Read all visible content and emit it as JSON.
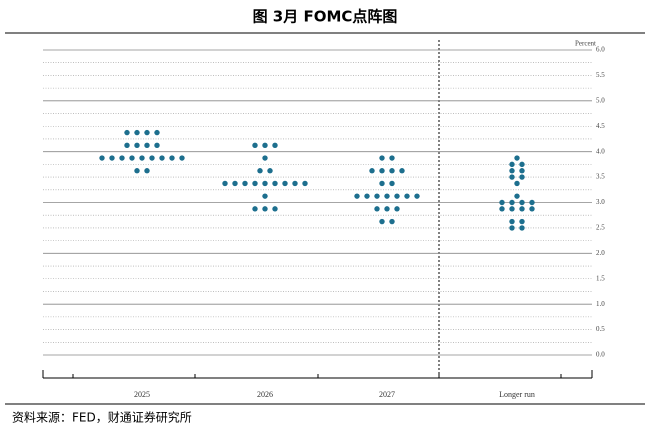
{
  "chart_data": {
    "type": "dot",
    "title": "图 3月 FOMC点阵图",
    "y_axis_label": "Percent",
    "source": "资料来源：FED，财通证券研究所",
    "categories": [
      "2025",
      "2026",
      "2027",
      "Longer run"
    ],
    "values": [
      [
        4.375,
        4.375,
        4.375,
        4.375,
        4.125,
        4.125,
        4.125,
        4.125,
        3.875,
        3.875,
        3.875,
        3.875,
        3.875,
        3.875,
        3.875,
        3.875,
        3.875,
        3.625,
        3.625
      ],
      [
        4.125,
        4.125,
        4.125,
        3.875,
        3.625,
        3.625,
        3.375,
        3.375,
        3.375,
        3.375,
        3.375,
        3.375,
        3.375,
        3.375,
        3.375,
        3.125,
        2.875,
        2.875,
        2.875
      ],
      [
        3.875,
        3.875,
        3.625,
        3.625,
        3.625,
        3.625,
        3.375,
        3.375,
        3.125,
        3.125,
        3.125,
        3.125,
        3.125,
        3.125,
        3.125,
        2.875,
        2.875,
        2.875,
        2.625,
        2.625
      ],
      [
        3.875,
        3.75,
        3.75,
        3.625,
        3.625,
        3.5,
        3.5,
        3.375,
        3.125,
        3.0,
        3.0,
        3.0,
        3.0,
        2.875,
        2.875,
        2.875,
        2.875,
        2.625,
        2.625,
        2.5,
        2.5
      ]
    ],
    "color": "#1d6f8e",
    "ylim": [
      0,
      6
    ],
    "yticks": [
      {
        "value": 0,
        "label": "0.0"
      },
      0.5,
      {
        "value": 1,
        "label": "1.0"
      },
      1.5,
      {
        "value": 2,
        "label": "2.0"
      },
      2.5,
      {
        "value": 3,
        "label": "3.0"
      },
      3.5,
      {
        "value": 4,
        "label": "4.0"
      },
      4.5,
      {
        "value": 5,
        "label": "5.0"
      },
      5.5,
      {
        "value": 6,
        "label": "6.0"
      }
    ],
    "minor_yticks": [
      0.25,
      0.75,
      1.25,
      1.75,
      2.25,
      2.75,
      3.25,
      3.75,
      4.25,
      4.75,
      5.25,
      5.75
    ]
  }
}
